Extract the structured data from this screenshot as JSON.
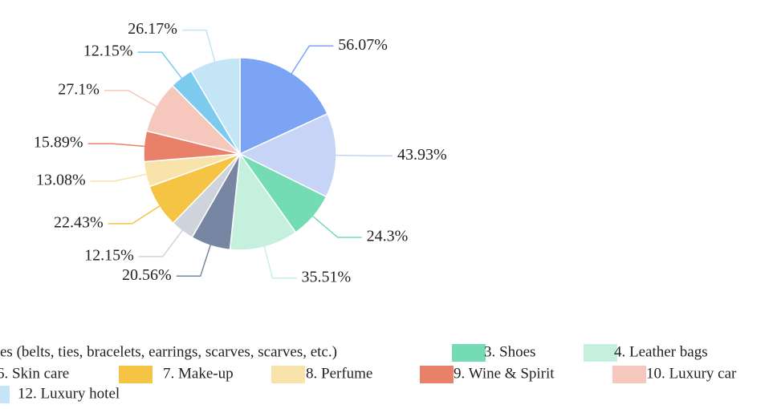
{
  "chart_data": {
    "type": "pie",
    "series": [
      {
        "name": null,
        "color": "#7ba4f5",
        "values": [
          56.07
        ],
        "value_labels": [
          "56.07%"
        ]
      },
      {
        "name": "es (belts, ties, bracelets, earrings, scarves, scarves, etc.)",
        "color": "#c7d4f7",
        "values": [
          43.93
        ],
        "value_labels": [
          "43.93%"
        ]
      },
      {
        "name": "3. Shoes",
        "color": "#74dcb4",
        "values": [
          24.3
        ],
        "value_labels": [
          "24.3%"
        ]
      },
      {
        "name": "4. Leather bags",
        "color": "#c6f0de",
        "values": [
          35.51
        ],
        "value_labels": [
          "35.51%"
        ]
      },
      {
        "name": null,
        "color": "#7787a3",
        "values": [
          20.56
        ],
        "value_labels": [
          "20.56%"
        ]
      },
      {
        "name": "6. Skin care",
        "color": "#cfd3dc",
        "values": [
          12.15
        ],
        "value_labels": [
          "12.15%"
        ]
      },
      {
        "name": "7. Make-up",
        "color": "#f5c445",
        "values": [
          22.43
        ],
        "value_labels": [
          "22.43%"
        ]
      },
      {
        "name": "8. Perfume",
        "color": "#f8e3ab",
        "values": [
          13.08
        ],
        "value_labels": [
          "13.08%"
        ]
      },
      {
        "name": "9. Wine & Spirit",
        "color": "#e8806a",
        "values": [
          15.89
        ],
        "value_labels": [
          "15.89%"
        ]
      },
      {
        "name": "10. Luxury car",
        "color": "#f6c7bd",
        "values": [
          27.1
        ],
        "value_labels": [
          "27.1%"
        ]
      },
      {
        "name": null,
        "color": "#7ccbee",
        "values": [
          12.15
        ],
        "value_labels": [
          "12.15%"
        ]
      },
      {
        "name": "12. Luxury hotel",
        "color": "#c3e5f5",
        "values": [
          26.17
        ],
        "value_labels": [
          "26.17%"
        ]
      }
    ]
  }
}
